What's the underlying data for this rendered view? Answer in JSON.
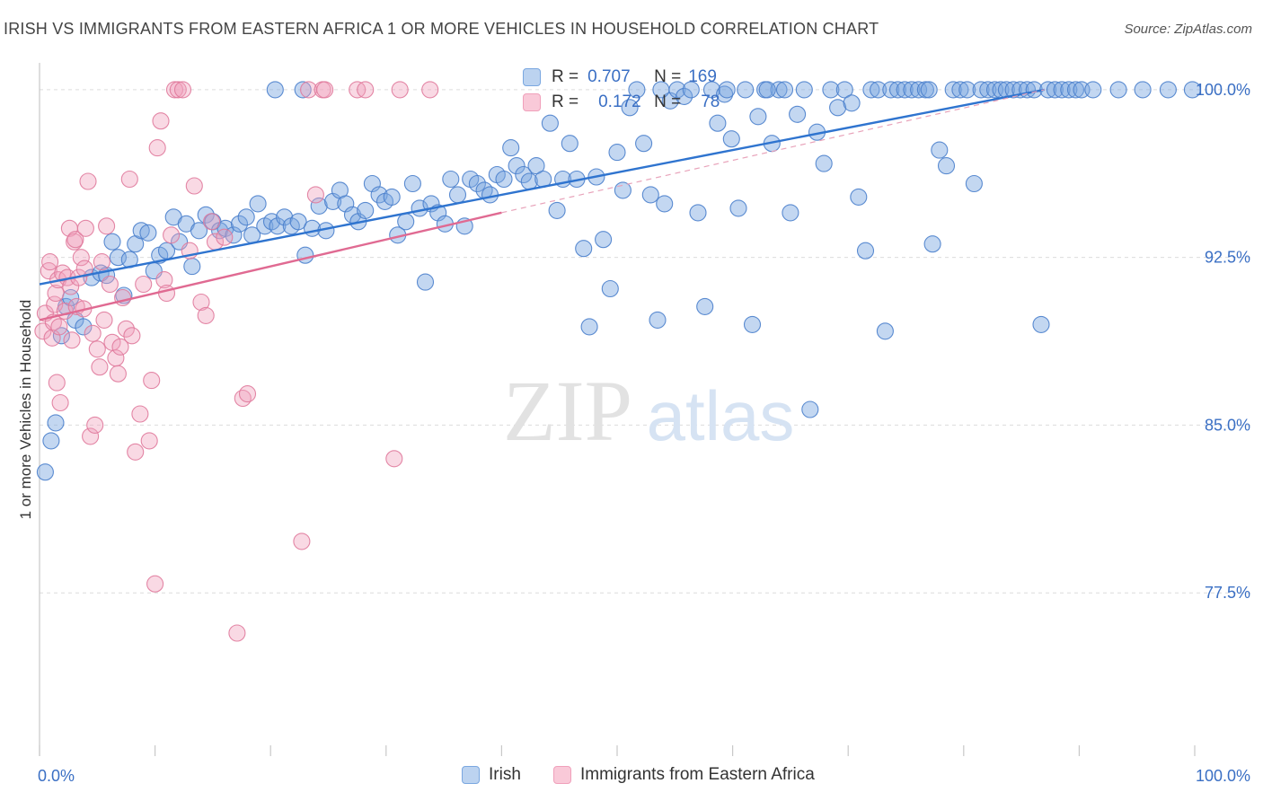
{
  "title": "IRISH VS IMMIGRANTS FROM EASTERN AFRICA 1 OR MORE VEHICLES IN HOUSEHOLD CORRELATION CHART",
  "source": "Source: ZipAtlas.com",
  "watermark": {
    "zip": "ZIP",
    "atlas": "atlas"
  },
  "stats": {
    "rows": [
      {
        "r_label": "R =",
        "r_value": "0.707",
        "n_label": "N =",
        "n_value": "169",
        "color": "#7aa7e0"
      },
      {
        "r_label": "R =",
        "r_value": "0.172",
        "n_label": "N =",
        "n_value": "78",
        "color": "#f0a0bb"
      }
    ]
  },
  "legend": {
    "irish": "Irish",
    "eastern_africa": "Immigrants from Eastern Africa"
  },
  "chart_data": {
    "type": "scatter",
    "title": "IRISH VS IMMIGRANTS FROM EASTERN AFRICA 1 OR MORE VEHICLES IN HOUSEHOLD CORRELATION CHART",
    "xlabel": "",
    "ylabel": "1 or more Vehicles in Household",
    "x_tick_labels": [
      "0.0%",
      "100.0%"
    ],
    "y_tick_labels": [
      "100.0%",
      "92.5%",
      "85.0%",
      "77.5%"
    ],
    "y_ticks": [
      100.0,
      92.5,
      85.0,
      77.5
    ],
    "xlim": [
      0,
      100
    ],
    "ylim": [
      70.2,
      101.2
    ],
    "grid": true,
    "series": [
      {
        "name": "Irish",
        "color": "#7aa7e0",
        "stroke": "#4a7fcc",
        "points": [
          [
            0.5,
            82.9
          ],
          [
            1.0,
            84.3
          ],
          [
            1.4,
            85.1
          ],
          [
            1.9,
            89.0
          ],
          [
            2.3,
            90.3
          ],
          [
            2.7,
            90.7
          ],
          [
            3.1,
            89.7
          ],
          [
            3.8,
            89.4
          ],
          [
            4.5,
            91.6
          ],
          [
            5.3,
            91.8
          ],
          [
            5.8,
            91.7
          ],
          [
            6.3,
            93.2
          ],
          [
            6.8,
            92.5
          ],
          [
            7.3,
            90.8
          ],
          [
            7.8,
            92.4
          ],
          [
            8.3,
            93.1
          ],
          [
            8.8,
            93.7
          ],
          [
            9.4,
            93.6
          ],
          [
            9.9,
            91.9
          ],
          [
            10.4,
            92.6
          ],
          [
            11.0,
            92.8
          ],
          [
            11.6,
            94.3
          ],
          [
            12.1,
            93.2
          ],
          [
            12.7,
            94.0
          ],
          [
            13.2,
            92.1
          ],
          [
            13.8,
            93.7
          ],
          [
            14.4,
            94.4
          ],
          [
            15.0,
            94.1
          ],
          [
            15.6,
            93.7
          ],
          [
            16.1,
            93.8
          ],
          [
            16.8,
            93.5
          ],
          [
            17.3,
            94.0
          ],
          [
            17.9,
            94.3
          ],
          [
            18.4,
            93.5
          ],
          [
            18.9,
            94.9
          ],
          [
            19.5,
            93.9
          ],
          [
            20.1,
            94.1
          ],
          [
            20.6,
            93.9
          ],
          [
            21.2,
            94.3
          ],
          [
            21.8,
            93.9
          ],
          [
            22.4,
            94.1
          ],
          [
            23.0,
            92.6
          ],
          [
            23.6,
            93.8
          ],
          [
            24.2,
            94.8
          ],
          [
            24.8,
            93.7
          ],
          [
            25.4,
            95.0
          ],
          [
            26.0,
            95.5
          ],
          [
            26.5,
            94.9
          ],
          [
            27.1,
            94.4
          ],
          [
            27.6,
            94.1
          ],
          [
            28.2,
            94.6
          ],
          [
            28.8,
            95.8
          ],
          [
            29.4,
            95.3
          ],
          [
            29.9,
            95.0
          ],
          [
            30.5,
            95.2
          ],
          [
            31.0,
            93.5
          ],
          [
            31.7,
            94.1
          ],
          [
            32.3,
            95.8
          ],
          [
            32.9,
            94.7
          ],
          [
            33.4,
            91.4
          ],
          [
            33.9,
            94.9
          ],
          [
            34.5,
            94.5
          ],
          [
            35.1,
            94.0
          ],
          [
            35.6,
            96.0
          ],
          [
            36.2,
            95.3
          ],
          [
            36.8,
            93.9
          ],
          [
            37.3,
            96.0
          ],
          [
            37.9,
            95.8
          ],
          [
            38.5,
            95.5
          ],
          [
            39.0,
            95.3
          ],
          [
            39.6,
            96.2
          ],
          [
            40.2,
            96.0
          ],
          [
            40.8,
            97.4
          ],
          [
            41.3,
            96.6
          ],
          [
            41.9,
            96.2
          ],
          [
            42.4,
            95.9
          ],
          [
            43.0,
            96.6
          ],
          [
            43.6,
            96.0
          ],
          [
            44.2,
            98.5
          ],
          [
            44.8,
            94.6
          ],
          [
            45.3,
            96.0
          ],
          [
            45.9,
            97.6
          ],
          [
            46.5,
            96.0
          ],
          [
            47.1,
            92.9
          ],
          [
            47.6,
            89.4
          ],
          [
            48.2,
            96.1
          ],
          [
            48.8,
            93.3
          ],
          [
            49.4,
            91.1
          ],
          [
            50.0,
            97.2
          ],
          [
            50.5,
            95.5
          ],
          [
            51.1,
            99.2
          ],
          [
            51.7,
            100.0
          ],
          [
            52.3,
            97.6
          ],
          [
            52.9,
            95.3
          ],
          [
            53.5,
            89.7
          ],
          [
            54.1,
            94.9
          ],
          [
            54.6,
            99.5
          ],
          [
            55.2,
            100.0
          ],
          [
            55.8,
            99.7
          ],
          [
            56.4,
            100.0
          ],
          [
            57.0,
            94.5
          ],
          [
            57.6,
            90.3
          ],
          [
            58.2,
            100.0
          ],
          [
            58.7,
            98.5
          ],
          [
            59.3,
            99.8
          ],
          [
            59.9,
            97.8
          ],
          [
            60.5,
            94.7
          ],
          [
            61.1,
            100.0
          ],
          [
            61.7,
            89.5
          ],
          [
            62.2,
            98.8
          ],
          [
            62.8,
            100.0
          ],
          [
            63.4,
            97.6
          ],
          [
            64.0,
            100.0
          ],
          [
            64.5,
            100.0
          ],
          [
            65.0,
            94.5
          ],
          [
            65.6,
            98.9
          ],
          [
            66.2,
            100.0
          ],
          [
            66.7,
            85.7
          ],
          [
            67.3,
            98.1
          ],
          [
            67.9,
            96.7
          ],
          [
            68.5,
            100.0
          ],
          [
            69.1,
            99.2
          ],
          [
            69.7,
            100.0
          ],
          [
            70.3,
            99.4
          ],
          [
            70.9,
            95.2
          ],
          [
            71.5,
            92.8
          ],
          [
            72.0,
            100.0
          ],
          [
            72.6,
            100.0
          ],
          [
            73.2,
            89.2
          ],
          [
            73.7,
            100.0
          ],
          [
            74.3,
            100.0
          ],
          [
            74.9,
            100.0
          ],
          [
            75.5,
            100.0
          ],
          [
            76.1,
            100.0
          ],
          [
            76.7,
            100.0
          ],
          [
            77.3,
            93.1
          ],
          [
            77.9,
            97.3
          ],
          [
            78.5,
            96.6
          ],
          [
            79.1,
            100.0
          ],
          [
            79.7,
            100.0
          ],
          [
            80.3,
            100.0
          ],
          [
            80.9,
            95.8
          ],
          [
            81.5,
            100.0
          ],
          [
            82.1,
            100.0
          ],
          [
            82.7,
            100.0
          ],
          [
            83.2,
            100.0
          ],
          [
            83.7,
            100.0
          ],
          [
            84.3,
            100.0
          ],
          [
            84.9,
            100.0
          ],
          [
            85.5,
            100.0
          ],
          [
            86.1,
            100.0
          ],
          [
            86.7,
            89.5
          ],
          [
            87.3,
            100.0
          ],
          [
            87.9,
            100.0
          ],
          [
            88.5,
            100.0
          ],
          [
            89.1,
            100.0
          ],
          [
            89.7,
            100.0
          ],
          [
            90.2,
            100.0
          ],
          [
            91.2,
            100.0
          ],
          [
            93.4,
            100.0
          ],
          [
            95.5,
            100.0
          ],
          [
            97.7,
            100.0
          ],
          [
            99.8,
            100.0
          ],
          [
            20.4,
            100.0
          ],
          [
            22.8,
            100.0
          ],
          [
            53.8,
            100.0
          ],
          [
            59.5,
            100.0
          ],
          [
            63.0,
            100.0
          ],
          [
            77.0,
            100.0
          ]
        ]
      },
      {
        "name": "Immigrants from Eastern Africa",
        "color": "#f0a0bb",
        "stroke": "#e07a9c",
        "points": [
          [
            0.3,
            89.2
          ],
          [
            0.5,
            90.0
          ],
          [
            0.8,
            91.9
          ],
          [
            0.9,
            92.3
          ],
          [
            1.1,
            88.9
          ],
          [
            1.2,
            89.6
          ],
          [
            1.3,
            90.4
          ],
          [
            1.4,
            90.9
          ],
          [
            1.5,
            86.9
          ],
          [
            1.6,
            91.5
          ],
          [
            1.7,
            89.4
          ],
          [
            1.8,
            86.0
          ],
          [
            2.0,
            91.8
          ],
          [
            2.2,
            90.1
          ],
          [
            2.4,
            91.6
          ],
          [
            2.6,
            93.8
          ],
          [
            2.7,
            91.2
          ],
          [
            2.8,
            88.8
          ],
          [
            3.0,
            93.2
          ],
          [
            3.1,
            93.3
          ],
          [
            3.2,
            90.3
          ],
          [
            3.4,
            91.6
          ],
          [
            3.6,
            92.5
          ],
          [
            3.8,
            90.2
          ],
          [
            3.9,
            92.0
          ],
          [
            4.0,
            93.8
          ],
          [
            4.2,
            95.9
          ],
          [
            4.4,
            84.5
          ],
          [
            4.6,
            89.1
          ],
          [
            4.8,
            85.0
          ],
          [
            5.0,
            88.4
          ],
          [
            5.2,
            87.6
          ],
          [
            5.4,
            92.3
          ],
          [
            5.6,
            89.7
          ],
          [
            5.8,
            93.9
          ],
          [
            6.1,
            91.3
          ],
          [
            6.3,
            88.7
          ],
          [
            6.6,
            88.0
          ],
          [
            6.8,
            87.3
          ],
          [
            7.0,
            88.5
          ],
          [
            7.2,
            90.7
          ],
          [
            7.5,
            89.3
          ],
          [
            7.8,
            96.0
          ],
          [
            8.0,
            89.0
          ],
          [
            8.3,
            83.8
          ],
          [
            8.7,
            85.5
          ],
          [
            9.0,
            91.3
          ],
          [
            9.5,
            84.3
          ],
          [
            9.7,
            87.0
          ],
          [
            10.0,
            77.9
          ],
          [
            10.2,
            97.4
          ],
          [
            10.5,
            98.6
          ],
          [
            10.8,
            91.5
          ],
          [
            11.0,
            90.9
          ],
          [
            11.4,
            93.5
          ],
          [
            11.7,
            100.0
          ],
          [
            12.0,
            100.0
          ],
          [
            12.4,
            100.0
          ],
          [
            13.0,
            92.8
          ],
          [
            13.4,
            95.7
          ],
          [
            14.0,
            90.5
          ],
          [
            14.4,
            89.9
          ],
          [
            14.9,
            94.1
          ],
          [
            15.2,
            93.2
          ],
          [
            16.0,
            93.4
          ],
          [
            17.1,
            75.7
          ],
          [
            17.6,
            86.2
          ],
          [
            18.0,
            86.4
          ],
          [
            22.7,
            79.8
          ],
          [
            23.3,
            100.0
          ],
          [
            23.9,
            95.3
          ],
          [
            24.5,
            100.0
          ],
          [
            24.7,
            100.0
          ],
          [
            27.5,
            100.0
          ],
          [
            28.2,
            100.0
          ],
          [
            30.7,
            83.5
          ],
          [
            31.2,
            100.0
          ],
          [
            33.8,
            100.0
          ]
        ]
      }
    ],
    "trendlines": [
      {
        "series": "Irish",
        "x": [
          0,
          87
        ],
        "y": [
          91.3,
          100.0
        ]
      },
      {
        "series": "Immigrants from Eastern Africa",
        "x": [
          0,
          40
        ],
        "y": [
          89.7,
          94.5
        ]
      },
      {
        "series": "Immigrants from Eastern Africa (extension)",
        "x": [
          40,
          87
        ],
        "y": [
          94.5,
          100.0
        ]
      }
    ]
  }
}
